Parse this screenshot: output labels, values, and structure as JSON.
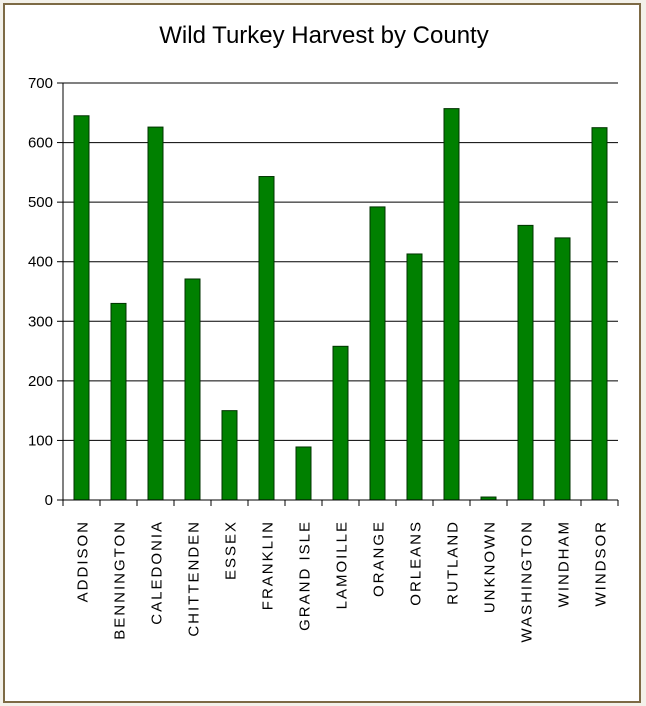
{
  "chart_data": {
    "type": "bar",
    "title": "Wild Turkey Harvest by County",
    "categories": [
      "ADDISON",
      "BENNINGTON",
      "CALEDONIA",
      "CHITTENDEN",
      "ESSEX",
      "FRANKLIN",
      "GRAND ISLE",
      "LAMOILLE",
      "ORANGE",
      "ORLEANS",
      "RUTLAND",
      "UNKNOWN",
      "WASHINGTON",
      "WINDHAM",
      "WINDSOR"
    ],
    "values": [
      645,
      330,
      626,
      371,
      150,
      543,
      89,
      258,
      492,
      413,
      657,
      5,
      461,
      440,
      625
    ],
    "ylim": [
      0,
      700
    ],
    "yticks": [
      "0",
      "100",
      "200",
      "300",
      "400",
      "500",
      "600",
      "700"
    ],
    "xlabel": "",
    "ylabel": "",
    "grid": true,
    "bar_color": "#008000",
    "bar_edge_color": "#003300"
  }
}
